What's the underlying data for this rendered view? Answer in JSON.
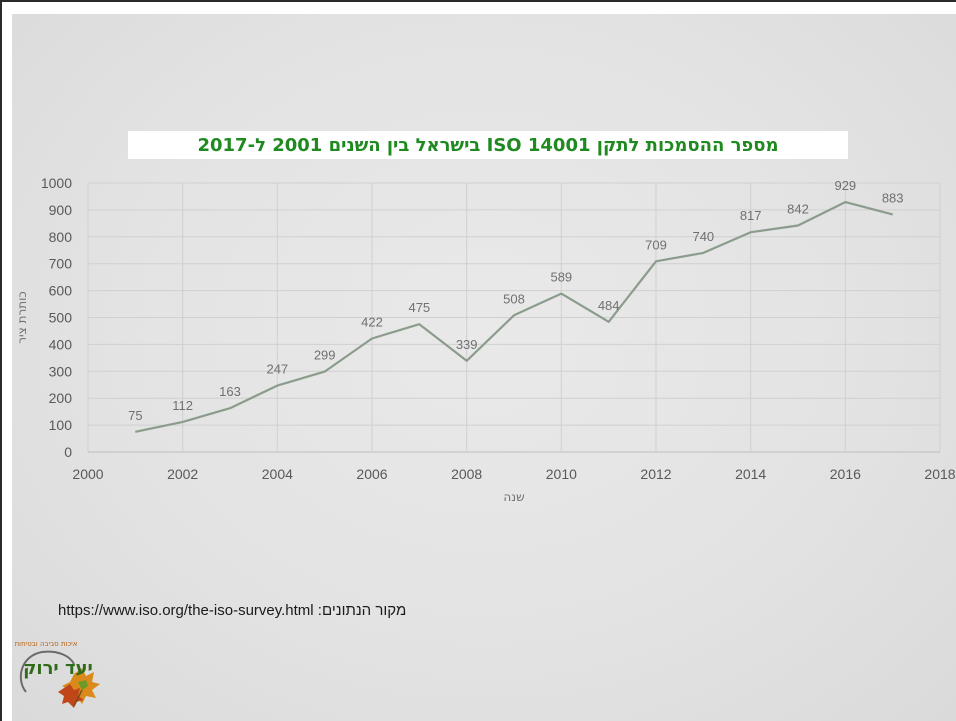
{
  "chart_data": {
    "type": "line",
    "title": "מספר ההסמכות לתקן ISO 14001 בישראל בין השנים 2001 ל-2017",
    "xlabel": "שנה",
    "ylabel": "כותרת ציר",
    "x": [
      2001,
      2002,
      2003,
      2004,
      2005,
      2006,
      2007,
      2008,
      2009,
      2010,
      2011,
      2012,
      2013,
      2014,
      2015,
      2016,
      2017
    ],
    "values": [
      75,
      112,
      163,
      247,
      299,
      422,
      475,
      339,
      508,
      589,
      484,
      709,
      740,
      817,
      842,
      929,
      883
    ],
    "xlim": [
      2000,
      2018
    ],
    "ylim": [
      0,
      1000
    ],
    "x_ticks": [
      2000,
      2002,
      2004,
      2006,
      2008,
      2010,
      2012,
      2014,
      2016,
      2018
    ],
    "x_tick_labels": [
      "2000",
      "2002",
      "2004",
      "2006",
      "2008",
      "2010",
      "2012",
      "2014",
      "2016",
      "2018"
    ],
    "y_ticks": [
      0,
      100,
      200,
      300,
      400,
      500,
      600,
      700,
      800,
      900,
      1000
    ],
    "y_tick_labels": [
      "0",
      "100",
      "200",
      "300",
      "400",
      "500",
      "600",
      "700",
      "800",
      "900",
      "1000"
    ],
    "grid": true,
    "data_labels": true,
    "legend": "none",
    "line_color": "#8c9c8c"
  },
  "footer": {
    "source_text": "מקור הנתונים: https://www.iso.org/the-iso-survey.html"
  },
  "logo": {
    "text": "יעד ירוק",
    "tagline": "איכות סביבה ובטיחות",
    "icon": "autumn-leaves-icon"
  },
  "colors": {
    "title": "#1f8a1f",
    "background": "#e6e6e6",
    "gridline": "#d0d0d0"
  }
}
